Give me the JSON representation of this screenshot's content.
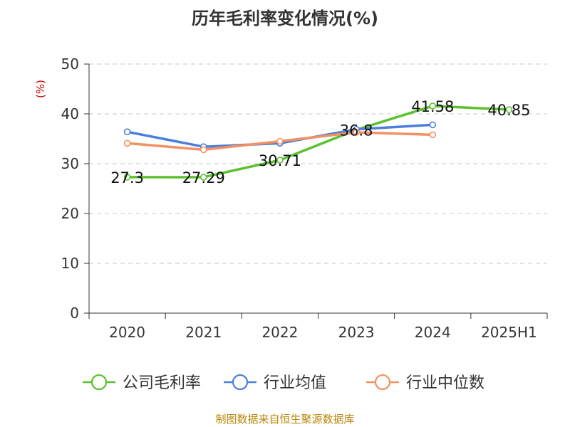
{
  "chart_data": {
    "type": "line",
    "title": "历年毛利率变化情况(%)",
    "ylabel": "(%)",
    "xlabel": "",
    "ylim": [
      0,
      50
    ],
    "yticks": [
      0,
      10,
      20,
      30,
      40,
      50
    ],
    "grid": true,
    "legend_position": "bottom",
    "categories": [
      "2020",
      "2021",
      "2022",
      "2023",
      "2024",
      "2025H1"
    ],
    "series": [
      {
        "name": "公司毛利率",
        "color": "#5cc12e",
        "values": [
          27.3,
          27.29,
          30.71,
          36.8,
          41.58,
          40.85
        ],
        "data_labels": [
          "27.3",
          "27.29",
          "30.71",
          "36.8",
          "41.58",
          "40.85"
        ]
      },
      {
        "name": "行业均值",
        "color": "#4a7fdc",
        "values": [
          36.4,
          33.4,
          34.1,
          36.9,
          37.8,
          null
        ],
        "data_labels": []
      },
      {
        "name": "行业中位数",
        "color": "#f29163",
        "values": [
          34.1,
          32.8,
          34.5,
          36.3,
          35.8,
          null
        ],
        "data_labels": []
      }
    ]
  },
  "source": "制图数据来自恒生聚源数据库"
}
